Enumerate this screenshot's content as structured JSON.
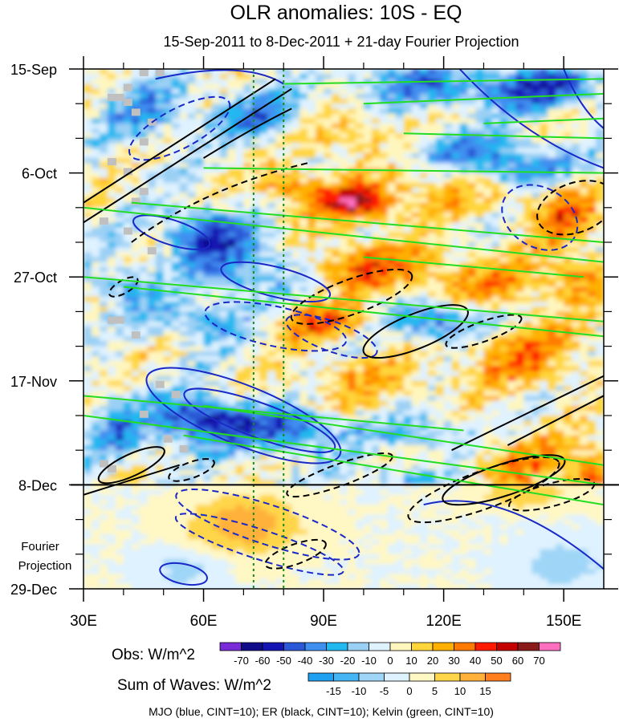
{
  "chart_data": {
    "type": "heatmap",
    "title": "OLR anomalies: 10S - EQ",
    "subtitle": "15-Sep-2011 to 8-Dec-2011 + 21-day Fourier Projection",
    "x_ticks": [
      {
        "value": 30,
        "label": "30E"
      },
      {
        "value": 60,
        "label": "60E"
      },
      {
        "value": 90,
        "label": "90E"
      },
      {
        "value": 120,
        "label": "120E"
      },
      {
        "value": 150,
        "label": "150E"
      }
    ],
    "xlim": [
      30,
      160
    ],
    "y_ticks": [
      {
        "day": 0,
        "label": "15-Sep"
      },
      {
        "day": 21,
        "label": "6-Oct"
      },
      {
        "day": 42,
        "label": "27-Oct"
      },
      {
        "day": 63,
        "label": "17-Nov"
      },
      {
        "day": 84,
        "label": "8-Dec"
      },
      {
        "day": 105,
        "label": "29-Dec"
      }
    ],
    "ylim_days": [
      0,
      105
    ],
    "observation_end_day": 84,
    "projection_label": [
      "Fourier",
      "Projection"
    ],
    "reference_lines_lon": [
      72.5,
      80
    ],
    "obs_legend": {
      "label": "Obs: W/m^2",
      "levels": [
        "-70",
        "-60",
        "-50",
        "-40",
        "-30",
        "-20",
        "-10",
        "0",
        "10",
        "20",
        "30",
        "40",
        "50",
        "60",
        "70"
      ],
      "colors": [
        "#7a2bd8",
        "#0f0c8a",
        "#1414b4",
        "#2a58d6",
        "#3f8ff0",
        "#22b8f0",
        "#9bd0f5",
        "#dff2ff",
        "#fff6be",
        "#ffd53a",
        "#ffb000",
        "#ff7a00",
        "#ff1a00",
        "#c40000",
        "#8b1a1a",
        "#ff6fc0"
      ]
    },
    "waves_legend": {
      "label": "Sum of Waves: W/m^2",
      "levels": [
        "-15",
        "-10",
        "-5",
        "0",
        "5",
        "10",
        "15"
      ],
      "colors": [
        "#1fa0f0",
        "#45b6f3",
        "#9fd6f7",
        "#dff2ff",
        "#fff7c4",
        "#ffd64a",
        "#ffb13b",
        "#ff7f1e"
      ]
    },
    "contour_note": "MJO (blue, CINT=10); ER (black, CINT=10); Kelvin (green, CINT=10)",
    "series": [
      {
        "name": "MJO",
        "color": "#1a28c8",
        "cint": 10
      },
      {
        "name": "ER",
        "color": "#000000",
        "cint": 10
      },
      {
        "name": "Kelvin",
        "color": "#22dd22",
        "cint": 10
      }
    ]
  }
}
